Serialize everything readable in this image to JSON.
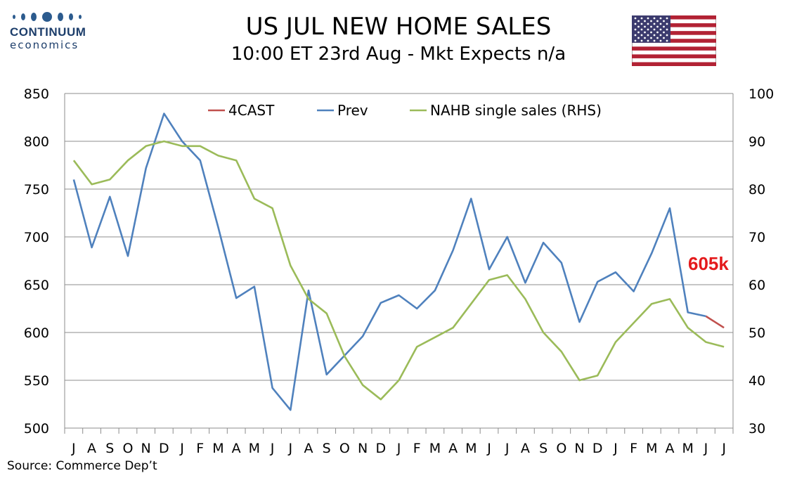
{
  "header": {
    "title": "US JUL NEW HOME SALES",
    "subtitle": "10:00 ET 23rd Aug - Mkt Expects n/a"
  },
  "logo": {
    "name": "CONTINUUM",
    "sub": "economics",
    "color": "#1d3e6b"
  },
  "flag": {
    "icon": "us-flag-icon"
  },
  "footer": {
    "source": "Source: Commerce Dep’t"
  },
  "chart_data": {
    "type": "line",
    "title": "US JUL NEW HOME SALES",
    "categories": [
      "J",
      "A",
      "S",
      "O",
      "N",
      "D",
      "J",
      "F",
      "M",
      "A",
      "M",
      "J",
      "J",
      "A",
      "S",
      "O",
      "N",
      "D",
      "J",
      "F",
      "M",
      "A",
      "M",
      "J",
      "J",
      "A",
      "S",
      "O",
      "N",
      "D",
      "J",
      "F",
      "M",
      "A",
      "M",
      "J",
      "J"
    ],
    "y_left": {
      "min": 500,
      "max": 850,
      "ticks": [
        500,
        550,
        600,
        650,
        700,
        750,
        800,
        850
      ]
    },
    "y_right": {
      "min": 30,
      "max": 100,
      "ticks": [
        30,
        40,
        50,
        60,
        70,
        80,
        90,
        100
      ]
    },
    "grid": true,
    "legend_position": "top-center",
    "series": [
      {
        "name": "4CAST",
        "axis": "left",
        "color": "#c0504d",
        "points": [
          [
            35,
            617
          ],
          [
            36,
            605
          ]
        ]
      },
      {
        "name": "Prev",
        "axis": "left",
        "color": "#4f81bd",
        "values": [
          760,
          689,
          742,
          680,
          772,
          829,
          800,
          780,
          710,
          636,
          648,
          542,
          519,
          644,
          556,
          576,
          596,
          631,
          639,
          625,
          644,
          686,
          740,
          666,
          700,
          652,
          694,
          673,
          611,
          653,
          663,
          643,
          683,
          730,
          621,
          617,
          null
        ]
      },
      {
        "name": "NAHB single sales (RHS)",
        "axis": "right",
        "color": "#9bbb59",
        "values": [
          86,
          81,
          82,
          86,
          89,
          90,
          89,
          89,
          87,
          86,
          78,
          76,
          64,
          57,
          54,
          45,
          39,
          36,
          40,
          47,
          49,
          51,
          56,
          61,
          62,
          57,
          50,
          46,
          40,
          41,
          48,
          52,
          56,
          57,
          51,
          48,
          47
        ]
      }
    ],
    "annotation": {
      "text": "605k",
      "color": "#e41a1c"
    }
  }
}
